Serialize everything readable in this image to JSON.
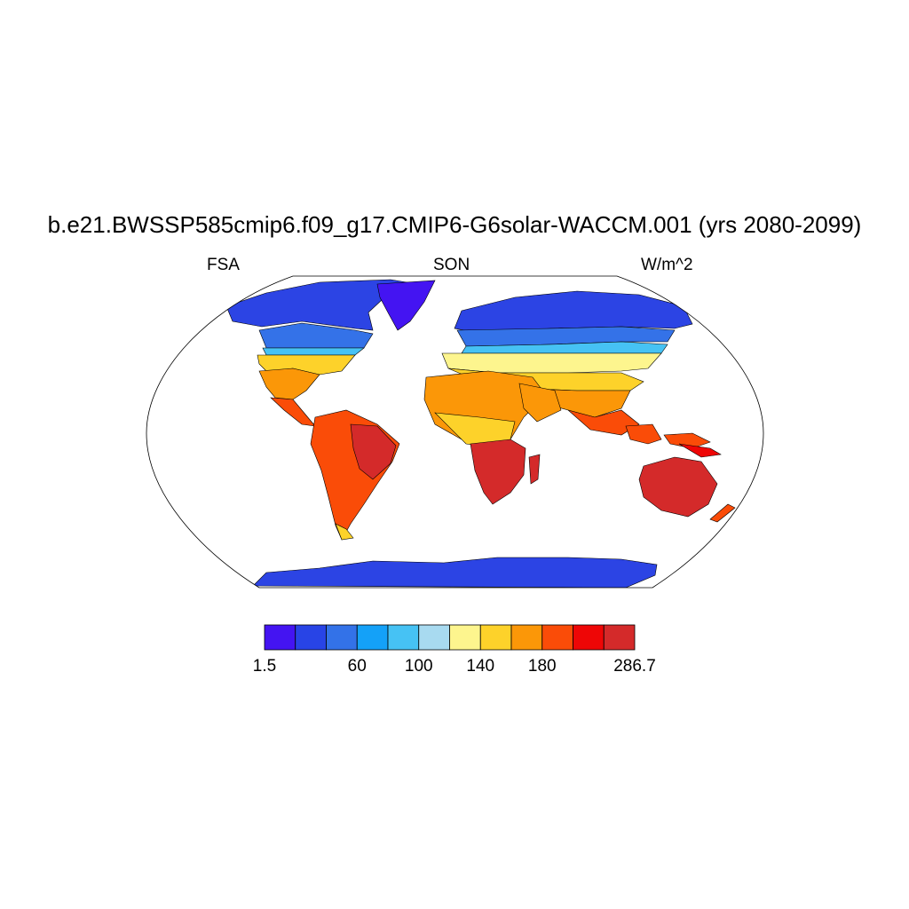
{
  "title": "b.e21.BWSSP585cmip6.f09_g17.CMIP6-G6solar-WACCM.001 (yrs 2080-2099)",
  "subtitle_left": "FSA",
  "subtitle_center": "SON",
  "subtitle_right": "W/m^2",
  "colorbar": {
    "colors": [
      "#4414f2",
      "#2844e6",
      "#3372e8",
      "#14a1f8",
      "#46c2f4",
      "#a8daf0",
      "#fdf58e",
      "#fdd22a",
      "#fb9708",
      "#fa4c08",
      "#ee0606",
      "#d42a2a"
    ],
    "tick_labels": [
      {
        "label": "1.5",
        "boundary_index": 0
      },
      {
        "label": "60",
        "boundary_index": 3
      },
      {
        "label": "100",
        "boundary_index": 5
      },
      {
        "label": "140",
        "boundary_index": 7
      },
      {
        "label": "180",
        "boundary_index": 9
      },
      {
        "label": "286.7",
        "boundary_index": 12
      }
    ]
  }
}
